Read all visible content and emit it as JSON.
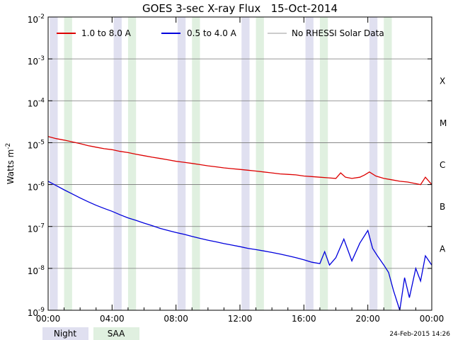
{
  "chart_data": {
    "type": "line",
    "title": "GOES 3-sec X-ray Flux   15-Oct-2014",
    "ylabel": "Watts m",
    "ylabel_sup": "-2",
    "y_scale": "log",
    "ylim": [
      1e-09,
      0.01
    ],
    "y_ticks": [
      {
        "value": 0.01,
        "base": "10",
        "exp": "-2"
      },
      {
        "value": 0.001,
        "base": "10",
        "exp": "-3"
      },
      {
        "value": 0.0001,
        "base": "10",
        "exp": "-4"
      },
      {
        "value": 1e-05,
        "base": "10",
        "exp": "-5"
      },
      {
        "value": 1e-06,
        "base": "10",
        "exp": "-6"
      },
      {
        "value": 1e-07,
        "base": "10",
        "exp": "-7"
      },
      {
        "value": 1e-08,
        "base": "10",
        "exp": "-8"
      },
      {
        "value": 1e-09,
        "base": "10",
        "exp": "-9"
      }
    ],
    "xlim_hours": [
      0,
      24
    ],
    "x_ticks": [
      {
        "hour": 0,
        "label": "00:00"
      },
      {
        "hour": 4,
        "label": "04:00"
      },
      {
        "hour": 8,
        "label": "08:00"
      },
      {
        "hour": 12,
        "label": "12:00"
      },
      {
        "hour": 16,
        "label": "16:00"
      },
      {
        "hour": 20,
        "label": "20:00"
      },
      {
        "hour": 24,
        "label": "00:00"
      }
    ],
    "flare_classes": [
      {
        "label": "X",
        "value": 0.0001
      },
      {
        "label": "M",
        "value": 1e-05
      },
      {
        "label": "C",
        "value": 1e-06
      },
      {
        "label": "B",
        "value": 1e-07
      },
      {
        "label": "A",
        "value": 1e-08
      }
    ],
    "grid": true,
    "legend_position": "top",
    "series": [
      {
        "name": "1.0 to 8.0 A",
        "color": "#dd0000",
        "x": [
          0,
          0.5,
          1,
          1.5,
          2,
          2.5,
          3,
          3.5,
          4,
          4.5,
          5,
          5.5,
          6,
          6.5,
          7,
          7.5,
          8,
          8.5,
          9,
          9.5,
          10,
          10.5,
          11,
          11.5,
          12,
          12.5,
          13,
          13.5,
          14,
          14.5,
          15,
          15.5,
          16,
          16.5,
          17,
          17.5,
          18,
          18.3,
          18.6,
          19,
          19.5,
          19.8,
          20.1,
          20.5,
          21,
          21.5,
          22,
          22.5,
          23,
          23.3,
          23.6,
          24
        ],
        "y": [
          1.4e-05,
          1.25e-05,
          1.15e-05,
          1.05e-05,
          9.5e-06,
          8.5e-06,
          7.8e-06,
          7.2e-06,
          6.8e-06,
          6.2e-06,
          5.8e-06,
          5.3e-06,
          4.9e-06,
          4.5e-06,
          4.2e-06,
          3.9e-06,
          3.6e-06,
          3.4e-06,
          3.2e-06,
          3e-06,
          2.8e-06,
          2.65e-06,
          2.5e-06,
          2.4e-06,
          2.3e-06,
          2.2e-06,
          2.1e-06,
          2e-06,
          1.9e-06,
          1.8e-06,
          1.75e-06,
          1.7e-06,
          1.6e-06,
          1.55e-06,
          1.5e-06,
          1.45e-06,
          1.4e-06,
          1.9e-06,
          1.5e-06,
          1.4e-06,
          1.5e-06,
          1.7e-06,
          2e-06,
          1.6e-06,
          1.4e-06,
          1.3e-06,
          1.2e-06,
          1.15e-06,
          1.05e-06,
          1e-06,
          1.5e-06,
          1e-06
        ]
      },
      {
        "name": "0.5 to 4.0 A",
        "color": "#0000dd",
        "x": [
          0,
          0.5,
          1,
          1.5,
          2,
          2.5,
          3,
          3.5,
          4,
          4.5,
          5,
          5.5,
          6,
          6.5,
          7,
          7.5,
          8,
          8.5,
          9,
          9.5,
          10,
          10.5,
          11,
          11.5,
          12,
          12.5,
          13,
          13.5,
          14,
          14.5,
          15,
          15.5,
          16,
          16.5,
          17,
          17.3,
          17.6,
          18,
          18.5,
          19,
          19.5,
          20,
          20.3,
          20.6,
          21,
          21.3,
          21.6,
          22,
          22.3,
          22.6,
          23,
          23.3,
          23.6,
          24
        ],
        "y": [
          1.2e-06,
          9.5e-07,
          7.5e-07,
          6e-07,
          4.8e-07,
          3.9e-07,
          3.2e-07,
          2.7e-07,
          2.3e-07,
          1.9e-07,
          1.6e-07,
          1.4e-07,
          1.2e-07,
          1.05e-07,
          9e-08,
          8e-08,
          7.2e-08,
          6.5e-08,
          5.8e-08,
          5.2e-08,
          4.7e-08,
          4.3e-08,
          3.9e-08,
          3.6e-08,
          3.3e-08,
          3e-08,
          2.8e-08,
          2.6e-08,
          2.4e-08,
          2.2e-08,
          2e-08,
          1.8e-08,
          1.6e-08,
          1.4e-08,
          1.3e-08,
          2.5e-08,
          1.2e-08,
          1.8e-08,
          5e-08,
          1.5e-08,
          4e-08,
          8e-08,
          3e-08,
          2e-08,
          1.2e-08,
          8e-09,
          3e-09,
          1e-09,
          6e-09,
          2e-09,
          1e-08,
          5e-09,
          2e-08,
          1.2e-08
        ]
      }
    ],
    "background_bands": {
      "night": [
        [
          0.1,
          0.6
        ],
        [
          4.1,
          4.6
        ],
        [
          8.1,
          8.6
        ],
        [
          12.1,
          12.6
        ],
        [
          16.1,
          16.6
        ],
        [
          20.1,
          20.6
        ]
      ],
      "saa": [
        [
          1.0,
          1.5
        ],
        [
          5.0,
          5.5
        ],
        [
          9.0,
          9.5
        ],
        [
          13.0,
          13.5
        ],
        [
          17.0,
          17.5
        ],
        [
          21.0,
          21.5
        ]
      ]
    },
    "band_legend": [
      {
        "label": "Night",
        "color": "#e0e0f0"
      },
      {
        "label": "SAA",
        "color": "#e0f0e0"
      }
    ],
    "gray_legend_label": "No RHESSI Solar Data",
    "gray_color": "#999999",
    "timestamp": "24-Feb-2015 14:26"
  }
}
